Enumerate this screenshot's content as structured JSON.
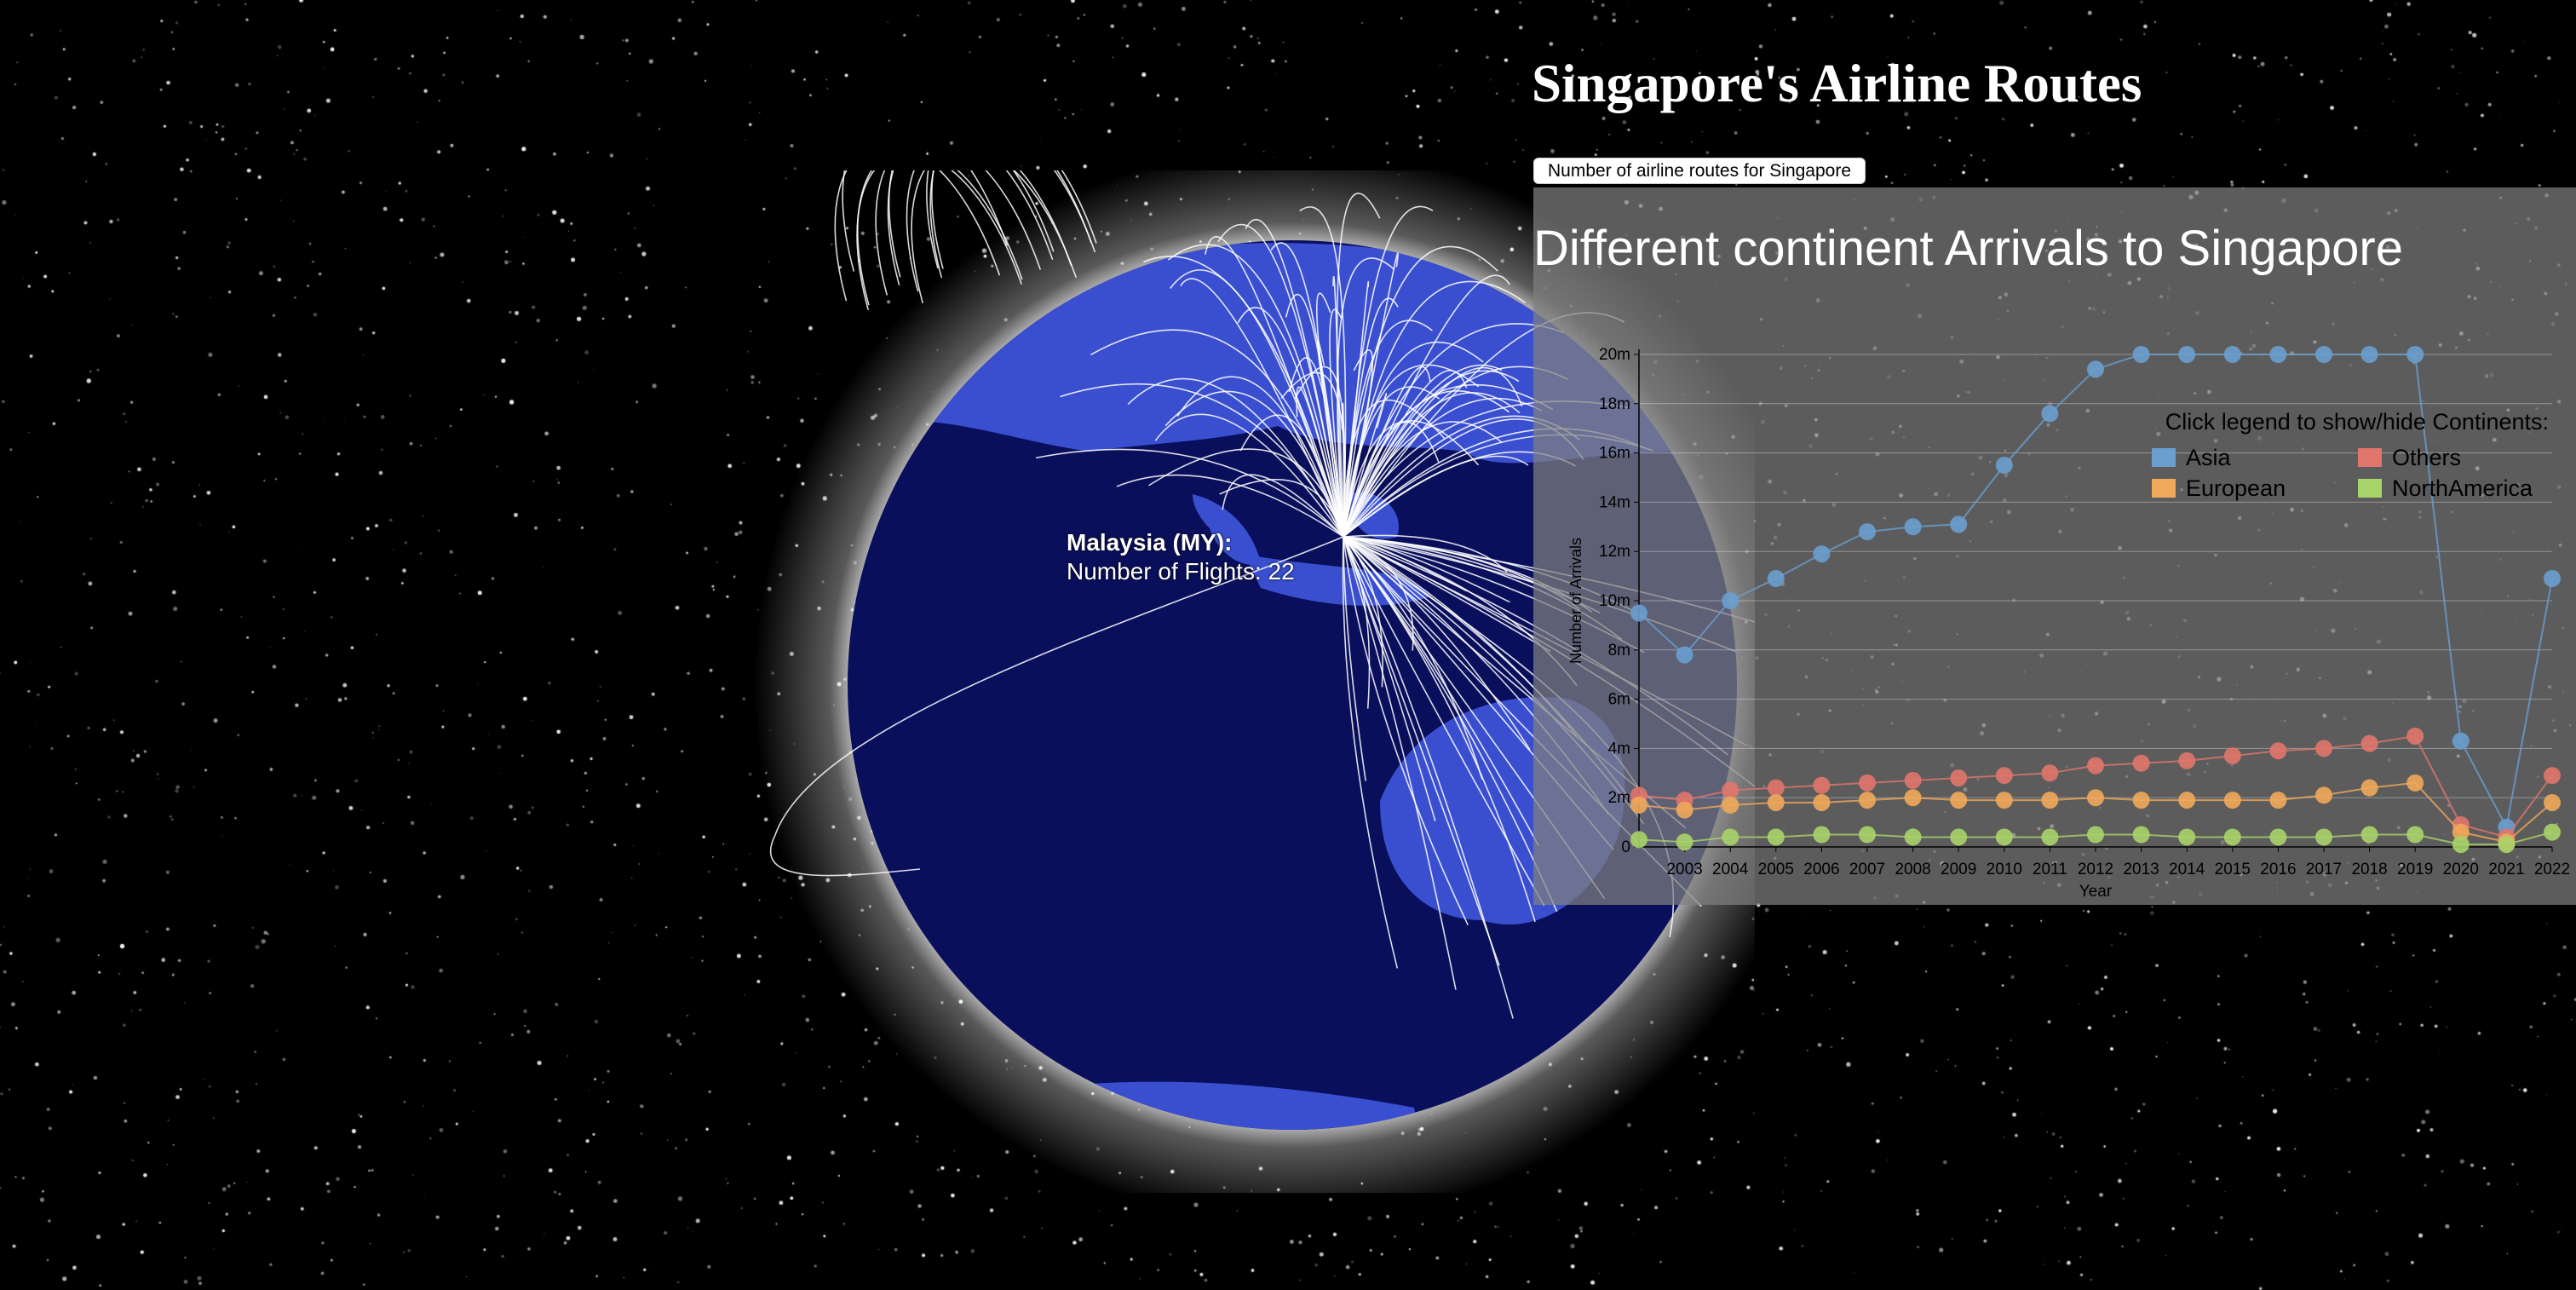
{
  "page": {
    "title": "Singapore's Airline Routes"
  },
  "controls": {
    "route_button_label": "Number of airline routes for Singapore"
  },
  "globe": {
    "colors": {
      "ocean": "#0a0f5c",
      "land": "#3a4fd0",
      "glow": "#ffffff",
      "route": "#ffffff"
    },
    "tooltip": {
      "country": "Malaysia (MY):",
      "flights_text": "Number of Flights: 22"
    }
  },
  "chart_data": {
    "type": "line",
    "title": "Different continent Arrivals to Singapore",
    "xlabel": "Year",
    "ylabel": "Number of Arrivals",
    "x": [
      "2002",
      "2003",
      "2004",
      "2005",
      "2006",
      "2007",
      "2008",
      "2009",
      "2010",
      "2011",
      "2012",
      "2013",
      "2014",
      "2015",
      "2016",
      "2017",
      "2018",
      "2019",
      "2020",
      "2021",
      "2022"
    ],
    "x_tick_labels": [
      "2003",
      "2004",
      "2005",
      "2006",
      "2007",
      "2008",
      "2009",
      "2010",
      "2011",
      "2012",
      "2013",
      "2014",
      "2015",
      "2016",
      "2017",
      "2018",
      "2019",
      "2020",
      "2021",
      "2022"
    ],
    "y_ticks": [
      "0",
      "2m",
      "4m",
      "6m",
      "8m",
      "10m",
      "12m",
      "14m",
      "16m",
      "18m",
      "20m"
    ],
    "ylim": [
      0,
      20000000
    ],
    "grid": true,
    "legend_title": "Click legend to show/hide Continents:",
    "series": [
      {
        "name": "Asia",
        "color": "#6a9fcf",
        "values": [
          9500000,
          7800000,
          10000000,
          10900000,
          11900000,
          12800000,
          13000000,
          13100000,
          15500000,
          17600000,
          19400000,
          20000000,
          20000000,
          20000000,
          20000000,
          20000000,
          20000000,
          20000000,
          4300000,
          800000,
          10900000
        ]
      },
      {
        "name": "Others",
        "color": "#e0766c",
        "values": [
          2100000,
          1900000,
          2300000,
          2400000,
          2500000,
          2600000,
          2700000,
          2800000,
          2900000,
          3000000,
          3300000,
          3400000,
          3500000,
          3700000,
          3900000,
          4000000,
          4200000,
          4500000,
          900000,
          400000,
          2900000
        ]
      },
      {
        "name": "European",
        "color": "#f0a85a",
        "values": [
          1700000,
          1500000,
          1700000,
          1800000,
          1800000,
          1900000,
          2000000,
          1900000,
          1900000,
          1900000,
          2000000,
          1900000,
          1900000,
          1900000,
          1900000,
          2100000,
          2400000,
          2600000,
          600000,
          200000,
          1800000
        ]
      },
      {
        "name": "NorthAmerica",
        "color": "#a8d36a",
        "values": [
          300000,
          200000,
          400000,
          400000,
          500000,
          500000,
          400000,
          400000,
          400000,
          400000,
          500000,
          500000,
          400000,
          400000,
          400000,
          400000,
          500000,
          500000,
          100000,
          100000,
          600000
        ]
      }
    ]
  }
}
